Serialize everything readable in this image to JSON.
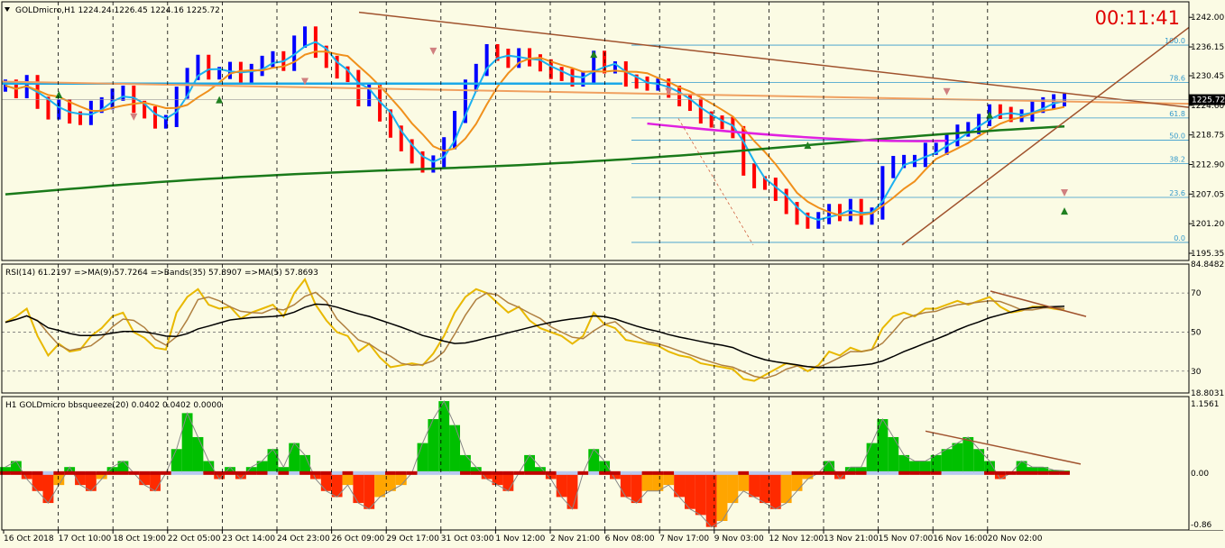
{
  "window": {
    "symbol_header": "GOLDmicro,H1  1224.24 1226.45 1224.16 1225.72",
    "timer": "00:11:41"
  },
  "colors": {
    "background": "#fbfbe4",
    "bull": "#0000ff",
    "bear": "#ff0000",
    "grid": "#000000",
    "ma_green": "#1a7a1a",
    "ma_magenta": "#e020e0",
    "ma_orange": "#f0901c",
    "ma_cyan": "#1ab0f0",
    "trend_brown": "#a0522d",
    "fibo": "#3399cc",
    "rsi_line": "#e8b800",
    "rsi_ma": "#b08040",
    "rsi_bands": "#000000",
    "hist_green": "#00c000",
    "hist_red": "#ff2a00",
    "hist_orange": "#ffa500",
    "timer": "#e00000"
  },
  "chart_data": [
    {
      "type": "candlestick",
      "title": "GOLDmicro,H1",
      "ohlc_last": {
        "open": 1224.24,
        "high": 1226.45,
        "low": 1224.16,
        "close": 1225.72
      },
      "current_price": 1225.72,
      "y_ticks": [
        1242.0,
        1236.15,
        1230.45,
        1224.6,
        1218.75,
        1212.9,
        1207.05,
        1201.2,
        1195.35
      ],
      "ylim": [
        1195.35,
        1244.0
      ],
      "x_tick_labels": [
        "16 Oct 2018",
        "17 Oct 10:00",
        "18 Oct 19:00",
        "22 Oct 05:00",
        "23 Oct 14:00",
        "24 Oct 23:00",
        "26 Oct 09:00",
        "29 Oct 17:00",
        "31 Oct 03:00",
        "1 Nov 12:00",
        "2 Nov 21:00",
        "6 Nov 08:00",
        "7 Nov 17:00",
        "9 Nov 03:00",
        "12 Nov 12:00",
        "13 Nov 21:00",
        "15 Nov 07:00",
        "16 Nov 16:00",
        "20 Nov 02:00"
      ],
      "fibonacci_levels": [
        {
          "label": "100.0",
          "value": 1236.5
        },
        {
          "label": "78.6",
          "value": 1229.1
        },
        {
          "label": "61.8",
          "value": 1222.1
        },
        {
          "label": "50.0",
          "value": 1217.7
        },
        {
          "label": "38.2",
          "value": 1213.1
        },
        {
          "label": "23.6",
          "value": 1206.4
        },
        {
          "label": "0.0",
          "value": 1197.5
        }
      ],
      "close_series": [
        1228.5,
        1227.2,
        1229.4,
        1225.1,
        1223.0,
        1224.6,
        1222.2,
        1221.9,
        1224.3,
        1225.0,
        1226.7,
        1227.3,
        1224.3,
        1223.2,
        1221.2,
        1221.5,
        1227.1,
        1230.8,
        1233.4,
        1230.9,
        1231.0,
        1232.0,
        1230.3,
        1231.6,
        1233.2,
        1234.1,
        1232.6,
        1237.2,
        1239.0,
        1235.2,
        1233.2,
        1231.1,
        1230.4,
        1225.6,
        1227.7,
        1222.6,
        1219.4,
        1216.7,
        1214.3,
        1212.5,
        1213.5,
        1217.1,
        1222.3,
        1228.5,
        1231.6,
        1235.5,
        1234.6,
        1233.2,
        1234.7,
        1233.5,
        1232.5,
        1231.0,
        1230.6,
        1229.5,
        1230.2,
        1234.2,
        1232.1,
        1232.1,
        1229.5,
        1229.1,
        1228.7,
        1228.7,
        1227.3,
        1225.6,
        1224.7,
        1222.2,
        1221.4,
        1221.1,
        1219.3,
        1211.9,
        1209.4,
        1209.1,
        1206.9,
        1204.3,
        1202.2,
        1201.4,
        1202.3,
        1203.9,
        1202.9,
        1204.9,
        1202.2,
        1203.2,
        1211.4,
        1213.4,
        1213.6,
        1213.6,
        1216.0,
        1216.0,
        1217.7,
        1219.6,
        1220.1,
        1221.7,
        1223.6,
        1223.1,
        1222.5,
        1222.6,
        1224.3,
        1225.0,
        1225.6,
        1225.72
      ]
    },
    {
      "type": "line",
      "title": "RSI(14) 61.2197  =>MA(9) 57.7264  =>Bands(35) 57.8907  =>MA(5) 57.8693",
      "values_last": {
        "rsi": 61.2197,
        "ma9": 57.7264,
        "bands35": 57.8907,
        "ma5": 57.8693
      },
      "y_ticks": [
        84.8482,
        70,
        50,
        30,
        18.8031
      ],
      "ylim": [
        18.8031,
        84.8482
      ],
      "levels": [
        70,
        50,
        30
      ],
      "rsi_series": [
        55,
        58,
        62,
        48,
        38,
        44,
        40,
        41,
        48,
        52,
        58,
        60,
        50,
        47,
        42,
        41,
        60,
        68,
        72,
        64,
        62,
        63,
        57,
        60,
        62,
        64,
        58,
        70,
        77,
        64,
        56,
        50,
        48,
        40,
        44,
        37,
        32,
        33,
        34,
        33,
        39,
        48,
        60,
        68,
        72,
        70,
        65,
        60,
        63,
        56,
        52,
        50,
        48,
        44,
        48,
        60,
        54,
        52,
        46,
        45,
        44,
        43,
        40,
        38,
        37,
        34,
        33,
        32,
        31,
        26,
        25,
        28,
        31,
        34,
        33,
        30,
        33,
        40,
        38,
        42,
        40,
        41,
        52,
        58,
        60,
        58,
        62,
        62,
        64,
        66,
        64,
        66,
        68,
        63,
        60,
        61,
        63,
        63,
        62,
        61.2
      ]
    },
    {
      "type": "bar",
      "title": "H1 GOLDmicro bbsqueeze(20) 0.0402 0.0402 0.0000",
      "values_last": [
        0.0402,
        0.0402,
        0.0
      ],
      "y_ticks": [
        1.1561,
        0.0,
        -0.86
      ],
      "ylim": [
        -0.86,
        1.1561
      ],
      "histogram_series": [
        0.1,
        0.2,
        -0.1,
        -0.3,
        -0.5,
        -0.2,
        0.1,
        -0.2,
        -0.3,
        -0.1,
        0.1,
        0.2,
        0.0,
        -0.2,
        -0.3,
        0.0,
        0.4,
        1.0,
        0.6,
        0.2,
        -0.1,
        0.1,
        -0.1,
        0.1,
        0.2,
        0.4,
        0.1,
        0.5,
        0.3,
        -0.1,
        -0.3,
        -0.4,
        -0.2,
        -0.5,
        -0.6,
        -0.4,
        -0.3,
        -0.2,
        0.0,
        0.5,
        0.9,
        1.2,
        0.8,
        0.3,
        0.1,
        -0.1,
        -0.2,
        -0.3,
        0.0,
        0.3,
        0.1,
        -0.1,
        -0.4,
        -0.6,
        0.0,
        0.4,
        0.2,
        -0.1,
        -0.4,
        -0.5,
        -0.3,
        -0.3,
        -0.2,
        -0.4,
        -0.6,
        -0.7,
        -0.9,
        -0.8,
        -0.5,
        -0.3,
        -0.4,
        -0.5,
        -0.6,
        -0.5,
        -0.3,
        -0.1,
        0.0,
        0.2,
        -0.1,
        0.1,
        0.1,
        0.5,
        0.9,
        0.6,
        0.3,
        0.2,
        0.2,
        0.3,
        0.4,
        0.5,
        0.6,
        0.4,
        0.2,
        -0.1,
        0.0,
        0.2,
        0.1,
        0.1,
        0.05,
        0.04
      ]
    }
  ]
}
